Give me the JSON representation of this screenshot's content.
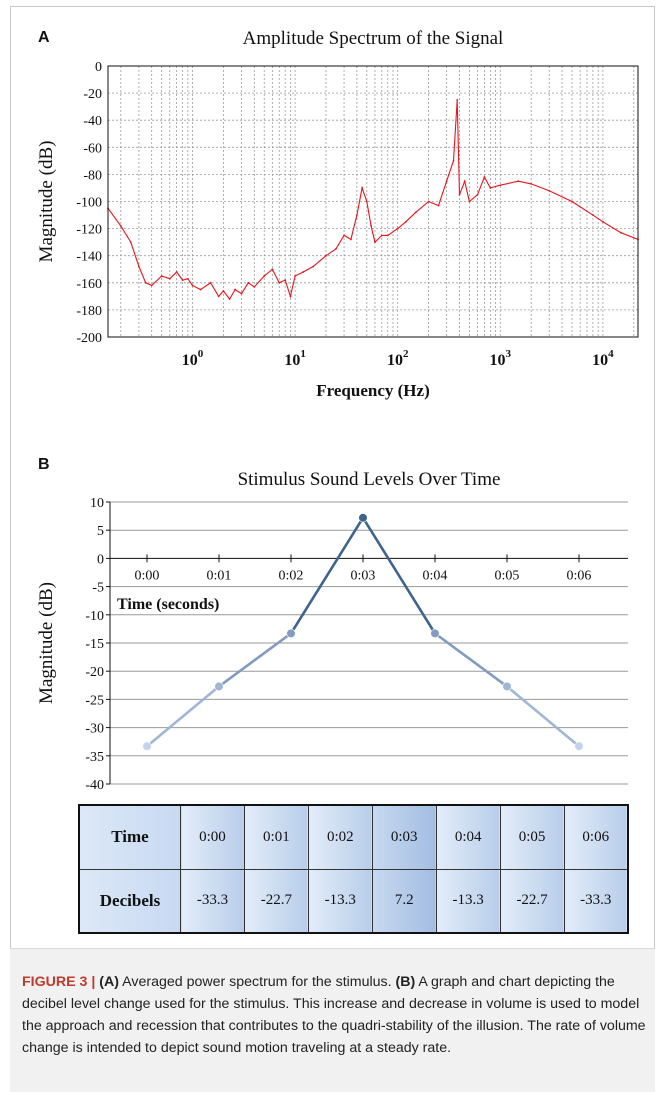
{
  "panel_a": {
    "letter": "A",
    "chart_data": {
      "type": "line",
      "title": "Amplitude Spectrum of the Signal",
      "xlabel": "Frequency (Hz)",
      "ylabel": "Magnitude (dB)",
      "x_scale": "log",
      "xlim": [
        0.15,
        22000
      ],
      "ylim": [
        -200,
        0
      ],
      "x_ticks": [
        {
          "value": 1,
          "base": "10",
          "exp": "0"
        },
        {
          "value": 10,
          "base": "10",
          "exp": "1"
        },
        {
          "value": 100,
          "base": "10",
          "exp": "2"
        },
        {
          "value": 1000,
          "base": "10",
          "exp": "3"
        },
        {
          "value": 10000,
          "base": "10",
          "exp": "4"
        }
      ],
      "y_ticks": [
        0,
        -20,
        -40,
        -60,
        -80,
        -100,
        -120,
        -140,
        -160,
        -180,
        -200
      ],
      "grid": true,
      "series": [
        {
          "color": "#e8141c",
          "x": [
            0.15,
            0.2,
            0.25,
            0.3,
            0.35,
            0.4,
            0.5,
            0.6,
            0.7,
            0.8,
            0.9,
            1.0,
            1.2,
            1.5,
            1.8,
            2.0,
            2.3,
            2.6,
            3.0,
            3.5,
            4.0,
            5.0,
            6.0,
            7.0,
            8.0,
            9.0,
            10,
            12,
            15,
            20,
            25,
            30,
            35,
            40,
            45,
            50,
            55,
            60,
            70,
            80,
            100,
            120,
            150,
            200,
            250,
            300,
            350,
            380,
            400,
            450,
            500,
            600,
            700,
            800,
            1000,
            1500,
            2000,
            3000,
            5000,
            8000,
            10000,
            15000,
            22000
          ],
          "y": [
            -105,
            -118,
            -130,
            -148,
            -160,
            -162,
            -155,
            -157,
            -152,
            -158,
            -157,
            -162,
            -165,
            -160,
            -170,
            -166,
            -172,
            -165,
            -168,
            -160,
            -163,
            -155,
            -150,
            -160,
            -158,
            -170,
            -155,
            -152,
            -148,
            -140,
            -135,
            -125,
            -128,
            -110,
            -90,
            -100,
            -118,
            -130,
            -125,
            -125,
            -120,
            -115,
            -108,
            -100,
            -103,
            -85,
            -70,
            -25,
            -95,
            -85,
            -100,
            -95,
            -82,
            -90,
            -88,
            -85,
            -87,
            -92,
            -100,
            -110,
            -115,
            -123,
            -128
          ]
        }
      ]
    }
  },
  "panel_b": {
    "letter": "B",
    "chart_data": {
      "type": "line",
      "title": "Stimulus Sound Levels Over Time",
      "xlabel": "Time (seconds)",
      "ylabel": "Magnitude (dB)",
      "categories": [
        "0:00",
        "0:01",
        "0:02",
        "0:03",
        "0:04",
        "0:05",
        "0:06"
      ],
      "ylim": [
        -40,
        10
      ],
      "y_ticks": [
        10,
        5,
        0,
        -5,
        -10,
        -15,
        -20,
        -25,
        -30,
        -35,
        -40
      ],
      "grid": true,
      "series": [
        {
          "values": [
            -33.3,
            -22.7,
            -13.3,
            7.2,
            -13.3,
            -22.7,
            -33.3
          ],
          "color": "#4a6f98"
        }
      ]
    },
    "table": {
      "row_labels": [
        "Time",
        "Decibels"
      ],
      "times": [
        "0:00",
        "0:01",
        "0:02",
        "0:03",
        "0:04",
        "0:05",
        "0:06"
      ],
      "decibels": [
        "-33.3",
        "-22.7",
        "-13.3",
        "7.2",
        "-13.3",
        "-22.7",
        "-33.3"
      ]
    }
  },
  "caption": {
    "fig_label": "FIGURE 3 | ",
    "a_label": "(A)",
    "a_text": " Averaged power spectrum for the stimulus. ",
    "b_label": "(B)",
    "b_text": " A graph and chart depicting the decibel level change used for the stimulus. This increase and decrease in volume is used to model the approach and recession that contributes to the quadri-stability of the illusion. The rate of volume change is intended to depict sound motion traveling at a steady rate."
  }
}
